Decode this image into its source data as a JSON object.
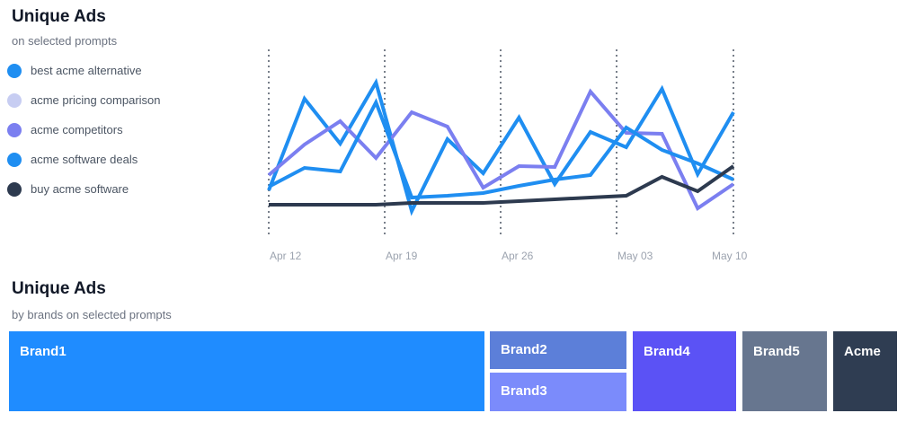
{
  "line_panel": {
    "title": "Unique Ads",
    "subtitle": "on selected prompts"
  },
  "treemap_panel": {
    "title": "Unique Ads",
    "subtitle": "by brands on selected prompts"
  },
  "chart_data": [
    {
      "type": "line",
      "title": "Unique Ads",
      "subtitle": "on selected prompts",
      "x_ticks": [
        "Apr 12",
        "Apr 19",
        "Apr 26",
        "May 03",
        "May 10"
      ],
      "vlines_at_ticks": true,
      "grid": false,
      "legend_position": "left",
      "series": [
        {
          "name": "best acme alternative",
          "color": "#1f8ef1",
          "values": [
            212,
            110,
            160,
            92,
            235,
            155,
            193,
            131,
            205,
            147,
            164,
            99,
            194,
            125
          ]
        },
        {
          "name": "acme pricing comparison",
          "color": "#c7cdf2",
          "values": []
        },
        {
          "name": "acme competitors",
          "color": "#7b7ff0",
          "values": [
            195,
            161,
            135,
            176,
            125,
            141,
            209,
            185,
            186,
            102,
            148,
            149,
            232,
            205
          ]
        },
        {
          "name": "acme software deals",
          "color": "#1f8ef1",
          "values": [
            208,
            187,
            191,
            114,
            220,
            218,
            215,
            207,
            200,
            195,
            142,
            167,
            182,
            200
          ]
        },
        {
          "name": "buy acme software",
          "color": "#2d3a4f",
          "values": [
            228,
            228,
            228,
            228,
            226,
            226,
            226,
            224,
            222,
            220,
            218,
            197,
            213,
            185
          ]
        }
      ]
    },
    {
      "type": "treemap",
      "title": "Unique Ads",
      "subtitle": "by brands on selected prompts",
      "items": [
        {
          "name": "Brand1",
          "value": 53.2,
          "color": "#1f8cff"
        },
        {
          "name": "Brand2",
          "value": 7.7,
          "color": "#5c7fd9"
        },
        {
          "name": "Brand3",
          "value": 7.7,
          "color": "#7b8bfb"
        },
        {
          "name": "Brand4",
          "value": 12.1,
          "color": "#5b52f5"
        },
        {
          "name": "Brand5",
          "value": 9.3,
          "color": "#67768f"
        },
        {
          "name": "Acme",
          "value": 7.3,
          "color": "#2f3d52"
        }
      ]
    }
  ]
}
